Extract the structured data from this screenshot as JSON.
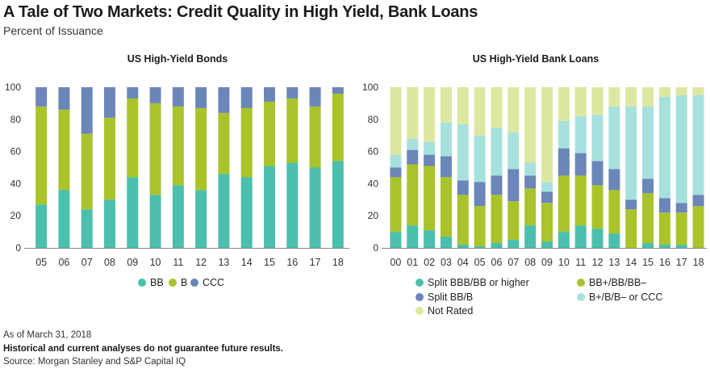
{
  "header": {
    "title": "A Tale of Two Markets: Credit Quality in High Yield, Bank Loans",
    "subtitle": "Percent of Issuance"
  },
  "footer": {
    "date_note": "As of March 31, 2018",
    "disclaimer": "Historical and current analyses do not guarantee future results.",
    "source": "Source: Morgan Stanley and S&P Capital IQ"
  },
  "colors": {
    "teal": "#4bbfae",
    "lime": "#a9c42a",
    "slate": "#6b86b8",
    "aqua": "#a7e1dd",
    "pale": "#dde7a0"
  },
  "chart_data": [
    {
      "type": "bar",
      "stacked": true,
      "title": "US High-Yield Bonds",
      "categories": [
        "05",
        "06",
        "07",
        "08",
        "09",
        "10",
        "11",
        "12",
        "13",
        "14",
        "15",
        "16",
        "17",
        "18"
      ],
      "ylim": [
        0,
        100
      ],
      "yticks": [
        0,
        20,
        40,
        60,
        80,
        100
      ],
      "grid": false,
      "legend_position": "bottom",
      "series": [
        {
          "name": "BB",
          "color": "#4bbfae",
          "values": [
            27,
            36,
            24,
            30,
            44,
            33,
            39,
            36,
            46,
            44,
            51,
            53,
            50,
            54
          ]
        },
        {
          "name": "B",
          "color": "#a9c42a",
          "values": [
            61,
            50,
            47,
            51,
            49,
            57,
            49,
            51,
            38,
            43,
            40,
            40,
            38,
            42
          ]
        },
        {
          "name": "CCC",
          "color": "#6b86b8",
          "values": [
            12,
            14,
            29,
            19,
            7,
            10,
            12,
            13,
            16,
            13,
            9,
            7,
            12,
            4
          ]
        }
      ]
    },
    {
      "type": "bar",
      "stacked": true,
      "title": "US High-Yield Bank Loans",
      "categories": [
        "00",
        "01",
        "02",
        "03",
        "04",
        "05",
        "06",
        "07",
        "08",
        "09",
        "10",
        "11",
        "12",
        "13",
        "14",
        "15",
        "16",
        "17",
        "18"
      ],
      "ylim": [
        0,
        100
      ],
      "yticks": [
        0,
        20,
        40,
        60,
        80,
        100
      ],
      "grid": false,
      "legend_position": "bottom",
      "series": [
        {
          "name": "Split BBB/BB or higher",
          "color": "#4bbfae",
          "values": [
            10,
            14,
            11,
            7,
            2,
            1,
            3,
            5,
            14,
            4,
            10,
            14,
            12,
            9,
            0,
            3,
            2,
            2,
            0
          ]
        },
        {
          "name": "BB+/BB/BB–",
          "color": "#a9c42a",
          "values": [
            34,
            38,
            40,
            37,
            31,
            25,
            30,
            24,
            23,
            24,
            35,
            31,
            27,
            27,
            24,
            31,
            20,
            20,
            26
          ]
        },
        {
          "name": "Split BB/B",
          "color": "#6b86b8",
          "values": [
            6,
            9,
            7,
            13,
            9,
            15,
            12,
            20,
            8,
            7,
            17,
            14,
            15,
            13,
            6,
            9,
            9,
            6,
            7
          ]
        },
        {
          "name": "B+/B/B– or CCC",
          "color": "#a7e1dd",
          "values": [
            8,
            7,
            8,
            21,
            35,
            29,
            30,
            23,
            8,
            6,
            17,
            23,
            29,
            39,
            58,
            45,
            63,
            67,
            62
          ]
        },
        {
          "name": "Not Rated",
          "color": "#dde7a0",
          "values": [
            42,
            32,
            34,
            22,
            23,
            30,
            25,
            28,
            47,
            59,
            21,
            18,
            17,
            12,
            12,
            12,
            6,
            5,
            5
          ]
        }
      ]
    }
  ]
}
